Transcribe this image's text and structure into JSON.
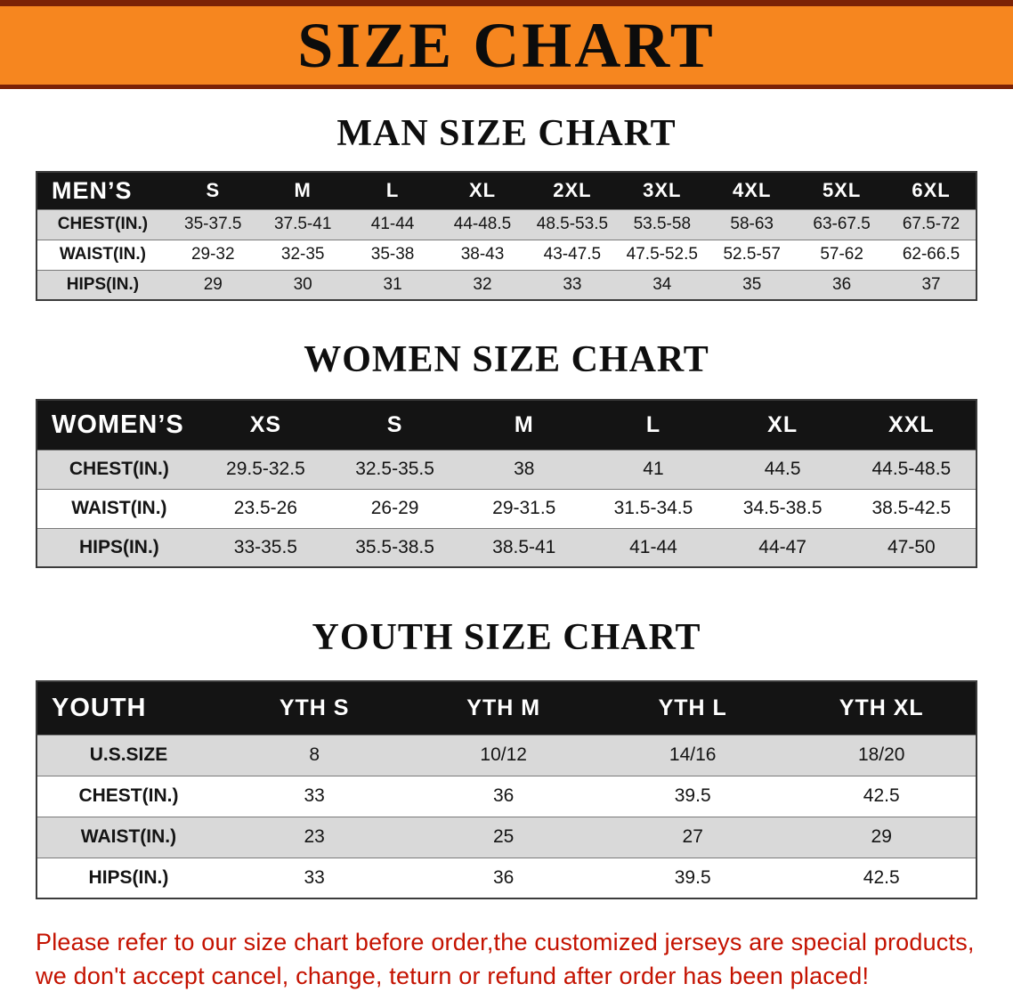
{
  "banner": {
    "title": "SIZE CHART"
  },
  "colors": {
    "banner_bg": "#f6861f",
    "banner_edge": "#7b2206",
    "header_bg": "#141414",
    "shaded_row": "#d9d9d9",
    "note_red": "#c41200"
  },
  "sections": [
    {
      "heading": "MAN SIZE CHART",
      "header_label": "MEN’S",
      "columns": [
        "S",
        "M",
        "L",
        "XL",
        "2XL",
        "3XL",
        "4XL",
        "5XL",
        "6XL"
      ],
      "rows": [
        {
          "label": "CHEST(IN.)",
          "values": [
            "35-37.5",
            "37.5-41",
            "41-44",
            "44-48.5",
            "48.5-53.5",
            "53.5-58",
            "58-63",
            "63-67.5",
            "67.5-72"
          ]
        },
        {
          "label": "WAIST(IN.)",
          "values": [
            "29-32",
            "32-35",
            "35-38",
            "38-43",
            "43-47.5",
            "47.5-52.5",
            "52.5-57",
            "57-62",
            "62-66.5"
          ]
        },
        {
          "label": "HIPS(IN.)",
          "values": [
            "29",
            "30",
            "31",
            "32",
            "33",
            "34",
            "35",
            "36",
            "37"
          ]
        }
      ]
    },
    {
      "heading": "WOMEN SIZE CHART",
      "header_label": "WOMEN’S",
      "columns": [
        "XS",
        "S",
        "M",
        "L",
        "XL",
        "XXL"
      ],
      "rows": [
        {
          "label": "CHEST(IN.)",
          "values": [
            "29.5-32.5",
            "32.5-35.5",
            "38",
            "41",
            "44.5",
            "44.5-48.5"
          ]
        },
        {
          "label": "WAIST(IN.)",
          "values": [
            "23.5-26",
            "26-29",
            "29-31.5",
            "31.5-34.5",
            "34.5-38.5",
            "38.5-42.5"
          ]
        },
        {
          "label": "HIPS(IN.)",
          "values": [
            "33-35.5",
            "35.5-38.5",
            "38.5-41",
            "41-44",
            "44-47",
            "47-50"
          ]
        }
      ]
    },
    {
      "heading": "YOUTH SIZE CHART",
      "header_label": "YOUTH",
      "columns": [
        "YTH S",
        "YTH M",
        "YTH L",
        "YTH XL"
      ],
      "rows": [
        {
          "label": "U.S.SIZE",
          "values": [
            "8",
            "10/12",
            "14/16",
            "18/20"
          ]
        },
        {
          "label": "CHEST(IN.)",
          "values": [
            "33",
            "36",
            "39.5",
            "42.5"
          ]
        },
        {
          "label": "WAIST(IN.)",
          "values": [
            "23",
            "25",
            "27",
            "29"
          ]
        },
        {
          "label": "HIPS(IN.)",
          "values": [
            "33",
            "36",
            "39.5",
            "42.5"
          ]
        }
      ]
    }
  ],
  "footer": {
    "line1": "Please refer to our size chart before order,the customized jerseys are special products,",
    "line2": "we don't accept cancel, change, teturn or refund after order has been placed!"
  }
}
